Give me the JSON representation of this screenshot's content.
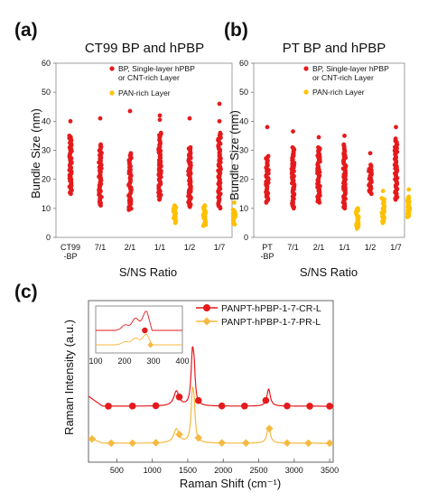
{
  "chart_data": [
    {
      "panel": "(a)",
      "type": "scatter",
      "title": "CT99 BP and hPBP",
      "xlabel": "S/NS Ratio",
      "ylabel": "Bundle Size (nm)",
      "ylim": [
        0,
        60
      ],
      "yticks": [
        0,
        10,
        20,
        30,
        40,
        50,
        60
      ],
      "categories": [
        "CT99 -BP",
        "7/1",
        "2/1",
        "1/1",
        "1/2",
        "1/7"
      ],
      "category_lines": [
        [
          "CT99",
          "-BP"
        ],
        [
          "7/1"
        ],
        [
          "2/1"
        ],
        [
          "1/1"
        ],
        [
          "1/2"
        ],
        [
          "1/7"
        ]
      ],
      "legend": [
        {
          "lines": [
            "BP, Single-layer hPBP",
            "or CNT-rich Layer"
          ],
          "color": "#e41a1c"
        },
        {
          "lines": [
            "PAN-rich Layer"
          ],
          "color": "#ffc000"
        }
      ],
      "series": [
        {
          "name": "BP, Single-layer hPBP or CNT-rich Layer",
          "color": "#e41a1c",
          "ranges": [
            [
              0,
              15,
              35
            ],
            [
              1,
              11,
              32
            ],
            [
              2,
              9.5,
              29
            ],
            [
              3,
              13,
              36
            ],
            [
              4,
              10.5,
              31
            ],
            [
              5,
              10,
              36
            ]
          ],
          "outliers": [
            [
              0,
              40
            ],
            [
              1,
              41
            ],
            [
              2,
              43.5
            ],
            [
              3,
              42
            ],
            [
              4,
              41
            ],
            [
              5,
              46
            ],
            [
              3,
              40.5
            ],
            [
              5,
              40
            ]
          ]
        },
        {
          "name": "PAN-rich Layer",
          "color": "#ffc000",
          "ranges": [
            [
              3.5,
              5,
              11
            ],
            [
              4.5,
              4,
              11
            ],
            [
              5.5,
              4.5,
              9.5
            ]
          ],
          "outliers": [
            [
              5.5,
              12
            ]
          ]
        }
      ]
    },
    {
      "panel": "(b)",
      "type": "scatter",
      "title": "PT BP and hPBP",
      "xlabel": "S/NS Ratio",
      "ylabel": "Bundle Size (nm)",
      "ylim": [
        0,
        60
      ],
      "yticks": [
        0,
        10,
        20,
        30,
        40,
        50,
        60
      ],
      "categories": [
        "PT -BP",
        "7/1",
        "2/1",
        "1/1",
        "1/2",
        "1/7"
      ],
      "category_lines": [
        [
          "PT",
          "-BP"
        ],
        [
          "7/1"
        ],
        [
          "2/1"
        ],
        [
          "1/1"
        ],
        [
          "1/2"
        ],
        [
          "1/7"
        ]
      ],
      "legend": [
        {
          "lines": [
            "BP, Single-layer hPBP",
            "or CNT-rich Layer"
          ],
          "color": "#e41a1c"
        },
        {
          "lines": [
            "PAN-rich Layer"
          ],
          "color": "#ffc000"
        }
      ],
      "series": [
        {
          "name": "BP, Single-layer hPBP or CNT-rich Layer",
          "color": "#e41a1c",
          "ranges": [
            [
              0,
              12,
              28
            ],
            [
              1,
              10,
              31
            ],
            [
              2,
              12,
              31
            ],
            [
              3,
              10,
              32
            ],
            [
              4,
              15,
              25
            ],
            [
              5,
              13,
              34
            ]
          ],
          "outliers": [
            [
              0,
              38
            ],
            [
              1,
              36.5
            ],
            [
              2,
              34.5
            ],
            [
              3,
              35
            ],
            [
              5,
              38
            ],
            [
              4,
              29
            ]
          ]
        },
        {
          "name": "PAN-rich Layer",
          "color": "#ffc000",
          "ranges": [
            [
              3.5,
              3,
              10
            ],
            [
              4.5,
              5,
              13.5
            ],
            [
              5.5,
              7,
              14
            ]
          ],
          "outliers": [
            [
              4.5,
              16
            ],
            [
              5.5,
              16.5
            ]
          ]
        }
      ]
    },
    {
      "panel": "(c)",
      "type": "line",
      "xlabel": "Raman Shift (cm⁻¹)",
      "ylabel": "Raman Intensity (a.u.)",
      "xlim": [
        100,
        3550
      ],
      "xticks": [
        500,
        1000,
        1500,
        2000,
        2500,
        3000,
        3500
      ],
      "yticks": [],
      "series": [
        {
          "name": "PANPT-hPBP-1-7-CR-L",
          "color": "#e41a1c",
          "marker": "circle",
          "markers_x": [
            380,
            720,
            1050,
            1380,
            1650,
            1980,
            2300,
            2600,
            2900,
            3220,
            3500
          ]
        },
        {
          "name": "PANPT-hPBP-1-7-PR-L",
          "color": "#f5b942",
          "marker": "diamond",
          "markers_x": [
            150,
            420,
            720,
            1050,
            1380,
            1650,
            1980,
            2320,
            2650,
            2900,
            3200,
            3500
          ]
        }
      ],
      "peaks": [
        {
          "center": 1340,
          "width": 45,
          "height": 0.3
        },
        {
          "center": 1565,
          "width": 22,
          "height": 1.0
        },
        {
          "center": 1590,
          "width": 18,
          "height": 0.55
        },
        {
          "center": 2640,
          "width": 28,
          "height": 0.35
        }
      ],
      "inset": {
        "xlim": [
          100,
          400
        ],
        "xticks": [
          100,
          200,
          300,
          400
        ],
        "markers_x_red": [
          270
        ],
        "markers_x_orange": [
          290
        ]
      }
    }
  ]
}
